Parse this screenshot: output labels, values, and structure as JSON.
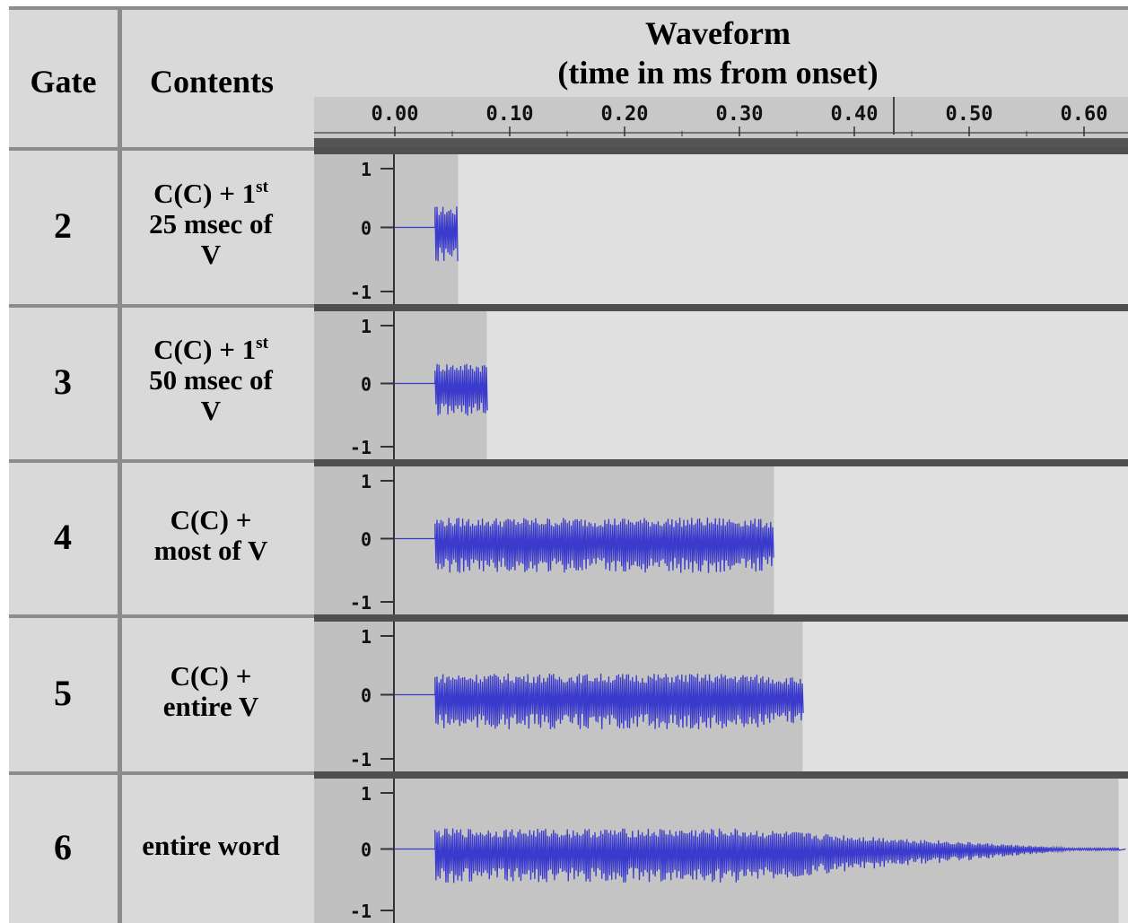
{
  "header": {
    "gate": "Gate",
    "contents": "Contents",
    "waveform_title_line1": "Waveform",
    "waveform_title_line2": "(time in ms from onset)"
  },
  "timeline": {
    "tick_labels": [
      "0.00",
      "0.10",
      "0.20",
      "0.30",
      "0.40",
      "0.50",
      "0.60"
    ],
    "tick_values": [
      0.0,
      0.1,
      0.2,
      0.3,
      0.4,
      0.5,
      0.6
    ]
  },
  "amplitude_labels": [
    "1",
    "0",
    "-1"
  ],
  "rows": [
    {
      "gate": "2",
      "contents_lines": [
        "C(C) + 1",
        "st",
        "25 msec of",
        "V"
      ],
      "gate_end": 0.055,
      "signal_end": 0.055
    },
    {
      "gate": "3",
      "contents_lines": [
        "C(C) + 1",
        "st",
        "50 msec of",
        "V"
      ],
      "gate_end": 0.08,
      "signal_end": 0.08
    },
    {
      "gate": "4",
      "contents_lines": [
        "C(C) +",
        "",
        "most of V",
        ""
      ],
      "gate_end": 0.33,
      "signal_end": 0.33
    },
    {
      "gate": "5",
      "contents_lines": [
        "C(C) +",
        "",
        "entire V",
        ""
      ],
      "gate_end": 0.355,
      "signal_end": 0.355
    },
    {
      "gate": "6",
      "contents_lines": [
        "entire word",
        "",
        "",
        ""
      ],
      "gate_end": 0.63,
      "signal_end": 0.63
    }
  ],
  "colors": {
    "waveform": "#3a3acc",
    "selected_region": "#c4c4c4",
    "unselected_region": "#e0e0e0",
    "track_label_bg": "#c0c0c0"
  }
}
